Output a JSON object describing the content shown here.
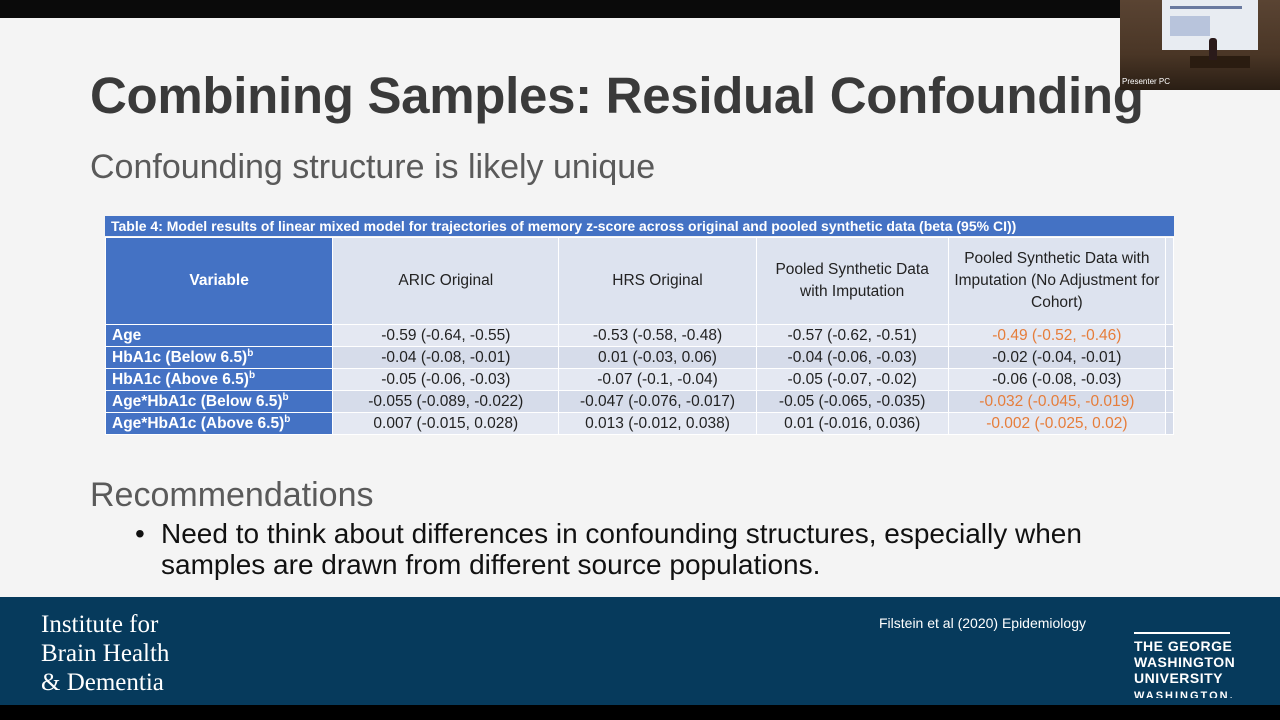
{
  "slide": {
    "title": "Combining Samples: Residual Confounding",
    "subtitle": "Confounding structure is likely unique"
  },
  "table": {
    "caption": "Table 4: Model results of linear mixed model for trajectories of memory z-score across original and pooled synthetic data (beta (95% CI))",
    "headers": {
      "variable": "Variable",
      "aric": "ARIC Original",
      "hrs": "HRS Original",
      "pooled": "Pooled Synthetic Data with Imputation",
      "pooled_noadj": "Pooled Synthetic Data with Imputation (No Adjustment for Cohort)"
    },
    "rows": [
      {
        "variable": "Age",
        "sup": "",
        "aric": "-0.59 (-0.64, -0.55)",
        "hrs": "-0.53 (-0.58, -0.48)",
        "pooled": "-0.57 (-0.62, -0.51)",
        "pooled_noadj": "-0.49 (-0.52, -0.46)",
        "highlight": true
      },
      {
        "variable": "HbA1c (Below 6.5)",
        "sup": "b",
        "aric": "-0.04 (-0.08, -0.01)",
        "hrs": "0.01 (-0.03, 0.06)",
        "pooled": "-0.04 (-0.06, -0.03)",
        "pooled_noadj": "-0.02 (-0.04, -0.01)",
        "highlight": false
      },
      {
        "variable": "HbA1c (Above 6.5)",
        "sup": "b",
        "aric": "-0.05 (-0.06, -0.03)",
        "hrs": "-0.07 (-0.1, -0.04)",
        "pooled": "-0.05 (-0.07, -0.02)",
        "pooled_noadj": "-0.06 (-0.08, -0.03)",
        "highlight": false
      },
      {
        "variable": "Age*HbA1c (Below 6.5)",
        "sup": "b",
        "aric": "-0.055 (-0.089, -0.022)",
        "hrs": "-0.047 (-0.076, -0.017)",
        "pooled": "-0.05 (-0.065, -0.035)",
        "pooled_noadj": "-0.032 (-0.045, -0.019)",
        "highlight": true
      },
      {
        "variable": "Age*HbA1c (Above 6.5)",
        "sup": "b",
        "aric": "0.007 (-0.015, 0.028)",
        "hrs": "0.013 (-0.012, 0.038)",
        "pooled": "0.01 (-0.016, 0.036)",
        "pooled_noadj": "-0.002 (-0.025, 0.02)",
        "highlight": true
      }
    ],
    "highlight_color": "#e67d3a",
    "header_color": "#4472c4"
  },
  "recommendations": {
    "heading": "Recommendations",
    "bullet": "Need to think about differences in confounding structures, especially when samples are drawn from different source populations."
  },
  "footer": {
    "institute_lines": [
      "Institute for",
      "Brain Health",
      "& Dementia"
    ],
    "citation": "Filstein et al (2020)  Epidemiology",
    "gw_logo_lines": [
      "THE GEORGE",
      "WASHINGTON",
      "UNIVERSITY",
      "WASHINGTON, DC"
    ],
    "background_color": "#063a5c"
  },
  "video_thumbnail": {
    "label": "Presenter PC"
  }
}
